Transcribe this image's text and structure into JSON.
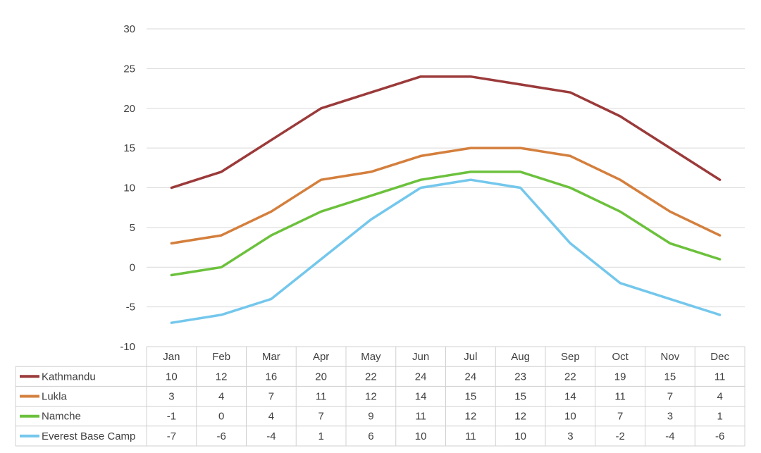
{
  "chart_data": {
    "type": "line",
    "title": "",
    "xlabel": "",
    "ylabel": "",
    "ylim": [
      -10,
      30
    ],
    "yticks": [
      -10,
      -5,
      0,
      5,
      10,
      15,
      20,
      25,
      30
    ],
    "grid": true,
    "legend_placement": "data-table-left",
    "categories": [
      "Jan",
      "Feb",
      "Mar",
      "Apr",
      "May",
      "Jun",
      "Jul",
      "Aug",
      "Sep",
      "Oct",
      "Nov",
      "Dec"
    ],
    "series": [
      {
        "name": "Kathmandu",
        "color": "#9b3a3a",
        "values": [
          10,
          12,
          16,
          20,
          22,
          24,
          24,
          23,
          22,
          19,
          15,
          11
        ]
      },
      {
        "name": "Lukla",
        "color": "#d47f3d",
        "values": [
          3,
          4,
          7,
          11,
          12,
          14,
          15,
          15,
          14,
          11,
          7,
          4
        ]
      },
      {
        "name": "Namche",
        "color": "#6cc13c",
        "values": [
          -1,
          0,
          4,
          7,
          9,
          11,
          12,
          12,
          10,
          7,
          3,
          1
        ]
      },
      {
        "name": "Everest Base Camp",
        "color": "#74c7ec",
        "values": [
          -7,
          -6,
          -4,
          1,
          6,
          10,
          11,
          10,
          3,
          -2,
          -4,
          -6
        ]
      }
    ]
  }
}
